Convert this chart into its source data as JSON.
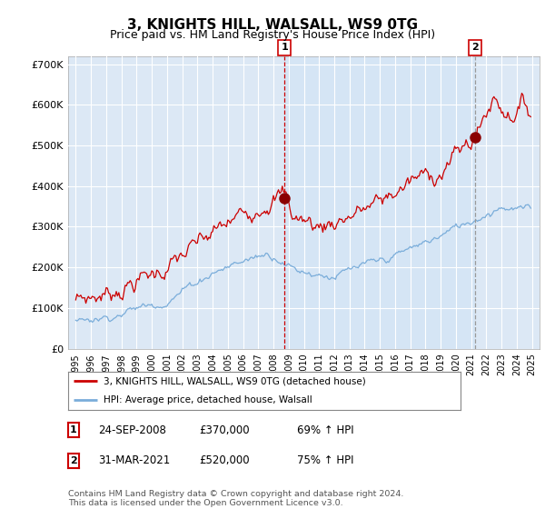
{
  "title": "3, KNIGHTS HILL, WALSALL, WS9 0TG",
  "subtitle": "Price paid vs. HM Land Registry's House Price Index (HPI)",
  "title_fontsize": 11,
  "subtitle_fontsize": 9,
  "ylim": [
    0,
    720000
  ],
  "yticks": [
    0,
    100000,
    200000,
    300000,
    400000,
    500000,
    600000,
    700000
  ],
  "ytick_labels": [
    "£0",
    "£100K",
    "£200K",
    "£300K",
    "£400K",
    "£500K",
    "£600K",
    "£700K"
  ],
  "background_color": "#dce8f5",
  "fig_bg_color": "#ffffff",
  "grid_color": "#ffffff",
  "red_line_color": "#cc0000",
  "blue_line_color": "#7aadda",
  "sale1_x": 2008.73,
  "sale1_y": 370000,
  "sale2_x": 2021.25,
  "sale2_y": 520000,
  "legend_entry1": "3, KNIGHTS HILL, WALSALL, WS9 0TG (detached house)",
  "legend_entry2": "HPI: Average price, detached house, Walsall",
  "table_data": [
    [
      "1",
      "24-SEP-2008",
      "£370,000",
      "69% ↑ HPI"
    ],
    [
      "2",
      "31-MAR-2021",
      "£520,000",
      "75% ↑ HPI"
    ]
  ],
  "footer": "Contains HM Land Registry data © Crown copyright and database right 2024.\nThis data is licensed under the Open Government Licence v3.0.",
  "xmin": 1994.5,
  "xmax": 2025.5
}
